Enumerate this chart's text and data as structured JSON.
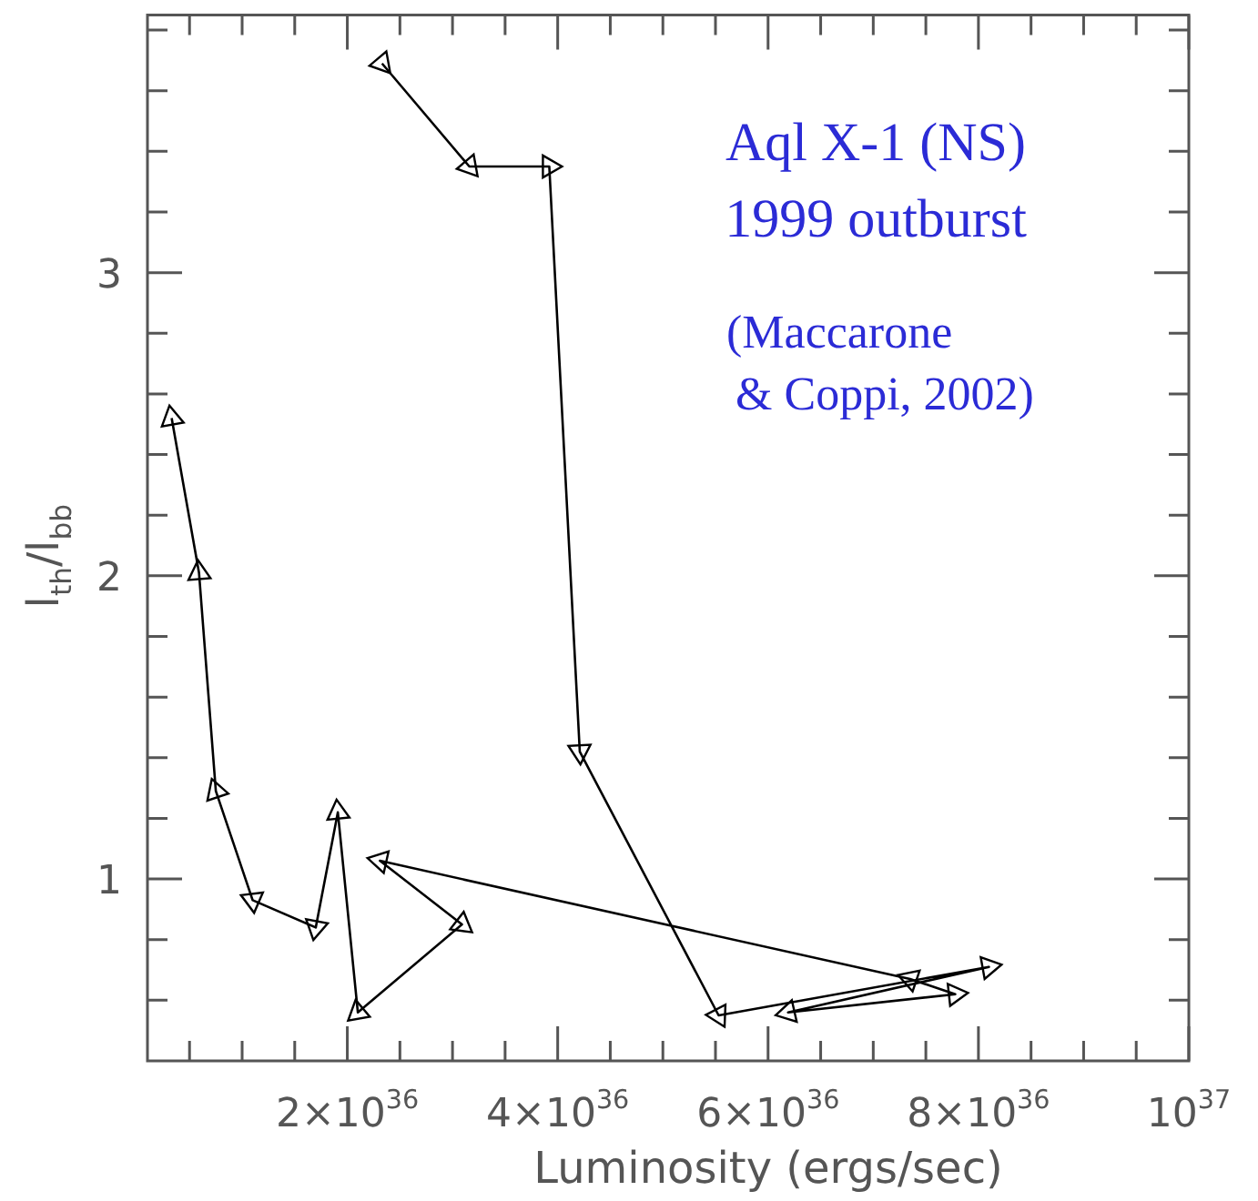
{
  "chart_data": {
    "type": "line",
    "xlabel": "Luminosity (ergs/sec)",
    "ylabel": "l$_{th}$/l$_{bb}$",
    "annotations": [
      "Aql X-1 (NS)",
      "1999 outburst",
      "(Maccarone\n& Coppi, 2002)"
    ],
    "x": [
      2.33e+36,
      3.16e+36,
      3.92e+36,
      4.21e+36,
      5.53e+36,
      8.1e+36,
      6.19e+36,
      7.78e+36,
      7.35e+36,
      2.31e+36,
      3.09e+36,
      2.1e+36,
      1.91e+36,
      1.7e+36,
      1.1e+36,
      7.5e+35,
      5.9e+35,
      3.3e+35
    ],
    "series": [
      {
        "color": "#000000",
        "values": [
          3.69,
          3.35,
          3.35,
          1.42,
          0.55,
          0.71,
          0.56,
          0.62,
          0.67,
          1.06,
          0.85,
          0.56,
          1.22,
          0.84,
          0.93,
          1.29,
          2.01,
          2.52
        ]
      }
    ],
    "xlim": [
      1e+35,
      1e+37
    ],
    "xticks": [
      {
        "value": 5e+35,
        "label": null
      },
      {
        "value": 1e+36,
        "label": null
      },
      {
        "value": 1.5e+36,
        "label": null
      },
      {
        "value": 2e+36,
        "label": "2×10$^{36}$"
      },
      {
        "value": 2.5e+36,
        "label": null
      },
      {
        "value": 3e+36,
        "label": null
      },
      {
        "value": 3.5e+36,
        "label": null
      },
      {
        "value": 4e+36,
        "label": "4×10$^{36}$"
      },
      {
        "value": 4.5e+36,
        "label": null
      },
      {
        "value": 5e+36,
        "label": null
      },
      {
        "value": 5.5e+36,
        "label": null
      },
      {
        "value": 6e+36,
        "label": "6×10$^{36}$"
      },
      {
        "value": 6.5e+36,
        "label": null
      },
      {
        "value": 7e+36,
        "label": null
      },
      {
        "value": 7.5e+36,
        "label": null
      },
      {
        "value": 8e+36,
        "label": "8×10$^{36}$"
      },
      {
        "value": 8.5e+36,
        "label": null
      },
      {
        "value": 9e+36,
        "label": null
      },
      {
        "value": 9.5e+36,
        "label": null
      },
      {
        "value": 1e+37,
        "label": "10$^{37}$"
      }
    ],
    "ylim": [
      0.4,
      3.85
    ],
    "yticks": [
      {
        "value": 0.6,
        "label": null
      },
      {
        "value": 0.8,
        "label": null
      },
      1,
      {
        "value": 1.2,
        "label": null
      },
      {
        "value": 1.4,
        "label": null
      },
      {
        "value": 1.6,
        "label": null
      },
      {
        "value": 1.8,
        "label": null
      },
      2,
      {
        "value": 2.2,
        "label": null
      },
      {
        "value": 2.4,
        "label": null
      },
      {
        "value": 2.6,
        "label": null
      },
      {
        "value": 2.8,
        "label": null
      },
      3,
      {
        "value": 3.2,
        "label": null
      },
      {
        "value": 3.4,
        "label": null
      },
      {
        "value": 3.6,
        "label": null
      },
      {
        "value": 3.8,
        "label": null
      }
    ],
    "grid": false,
    "legend": false,
    "marker": "triangle",
    "line_style": "solid"
  }
}
